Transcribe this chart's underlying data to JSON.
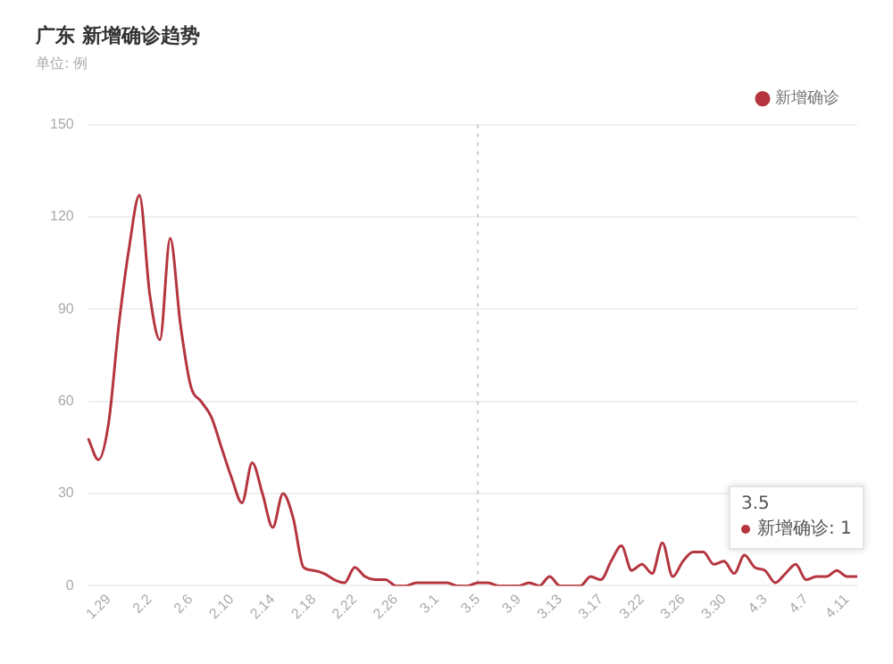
{
  "chart_data": {
    "type": "line",
    "title": "广东 新增确诊趋势",
    "subtitle": "单位: 例",
    "categories": [
      null,
      null,
      "1.29",
      null,
      null,
      null,
      "2.2",
      null,
      null,
      null,
      "2.6",
      null,
      null,
      null,
      "2.10",
      null,
      null,
      null,
      "2.14",
      null,
      null,
      null,
      "2.18",
      null,
      null,
      null,
      "2.22",
      null,
      null,
      null,
      "2.26",
      null,
      null,
      null,
      "3.1",
      null,
      null,
      null,
      "3.5",
      null,
      null,
      null,
      "3.9",
      null,
      null,
      null,
      "3.13",
      null,
      null,
      null,
      "3.17",
      null,
      null,
      null,
      "3.22",
      null,
      null,
      null,
      "3.26",
      null,
      null,
      null,
      "3.30",
      null,
      null,
      null,
      "4.3",
      null,
      null,
      null,
      "4.7",
      null,
      null,
      null,
      "4.11",
      null
    ],
    "series": [
      {
        "name": "新增确诊",
        "color": "#b5353f",
        "values": [
          48,
          41,
          53,
          85,
          110,
          127,
          95,
          80,
          113,
          85,
          65,
          60,
          55,
          45,
          35,
          27,
          40,
          30,
          19,
          30,
          22,
          6,
          5,
          4,
          2,
          1,
          6,
          3,
          2,
          2,
          0,
          0,
          1,
          1,
          1,
          1,
          0,
          0,
          1,
          1,
          0,
          0,
          0,
          1,
          0,
          3,
          0,
          0,
          0,
          3,
          2,
          8,
          13,
          5,
          7,
          4,
          14,
          3,
          8,
          11,
          11,
          7,
          8,
          4,
          10,
          6,
          5,
          1,
          4,
          7,
          2,
          3,
          3,
          5,
          3,
          3
        ]
      }
    ],
    "ylim": [
      0,
      150
    ],
    "yticks": [
      0,
      30,
      60,
      90,
      120,
      150
    ],
    "grid": "y",
    "legend": "top right",
    "marker": "none",
    "line_style": "solid",
    "ref_lines": [
      {
        "axis": "x",
        "value": "3.5",
        "color": "#cccccc",
        "line_style": "dotted"
      }
    ],
    "annotations": [
      "3.5\n新增确诊: 1"
    ]
  }
}
